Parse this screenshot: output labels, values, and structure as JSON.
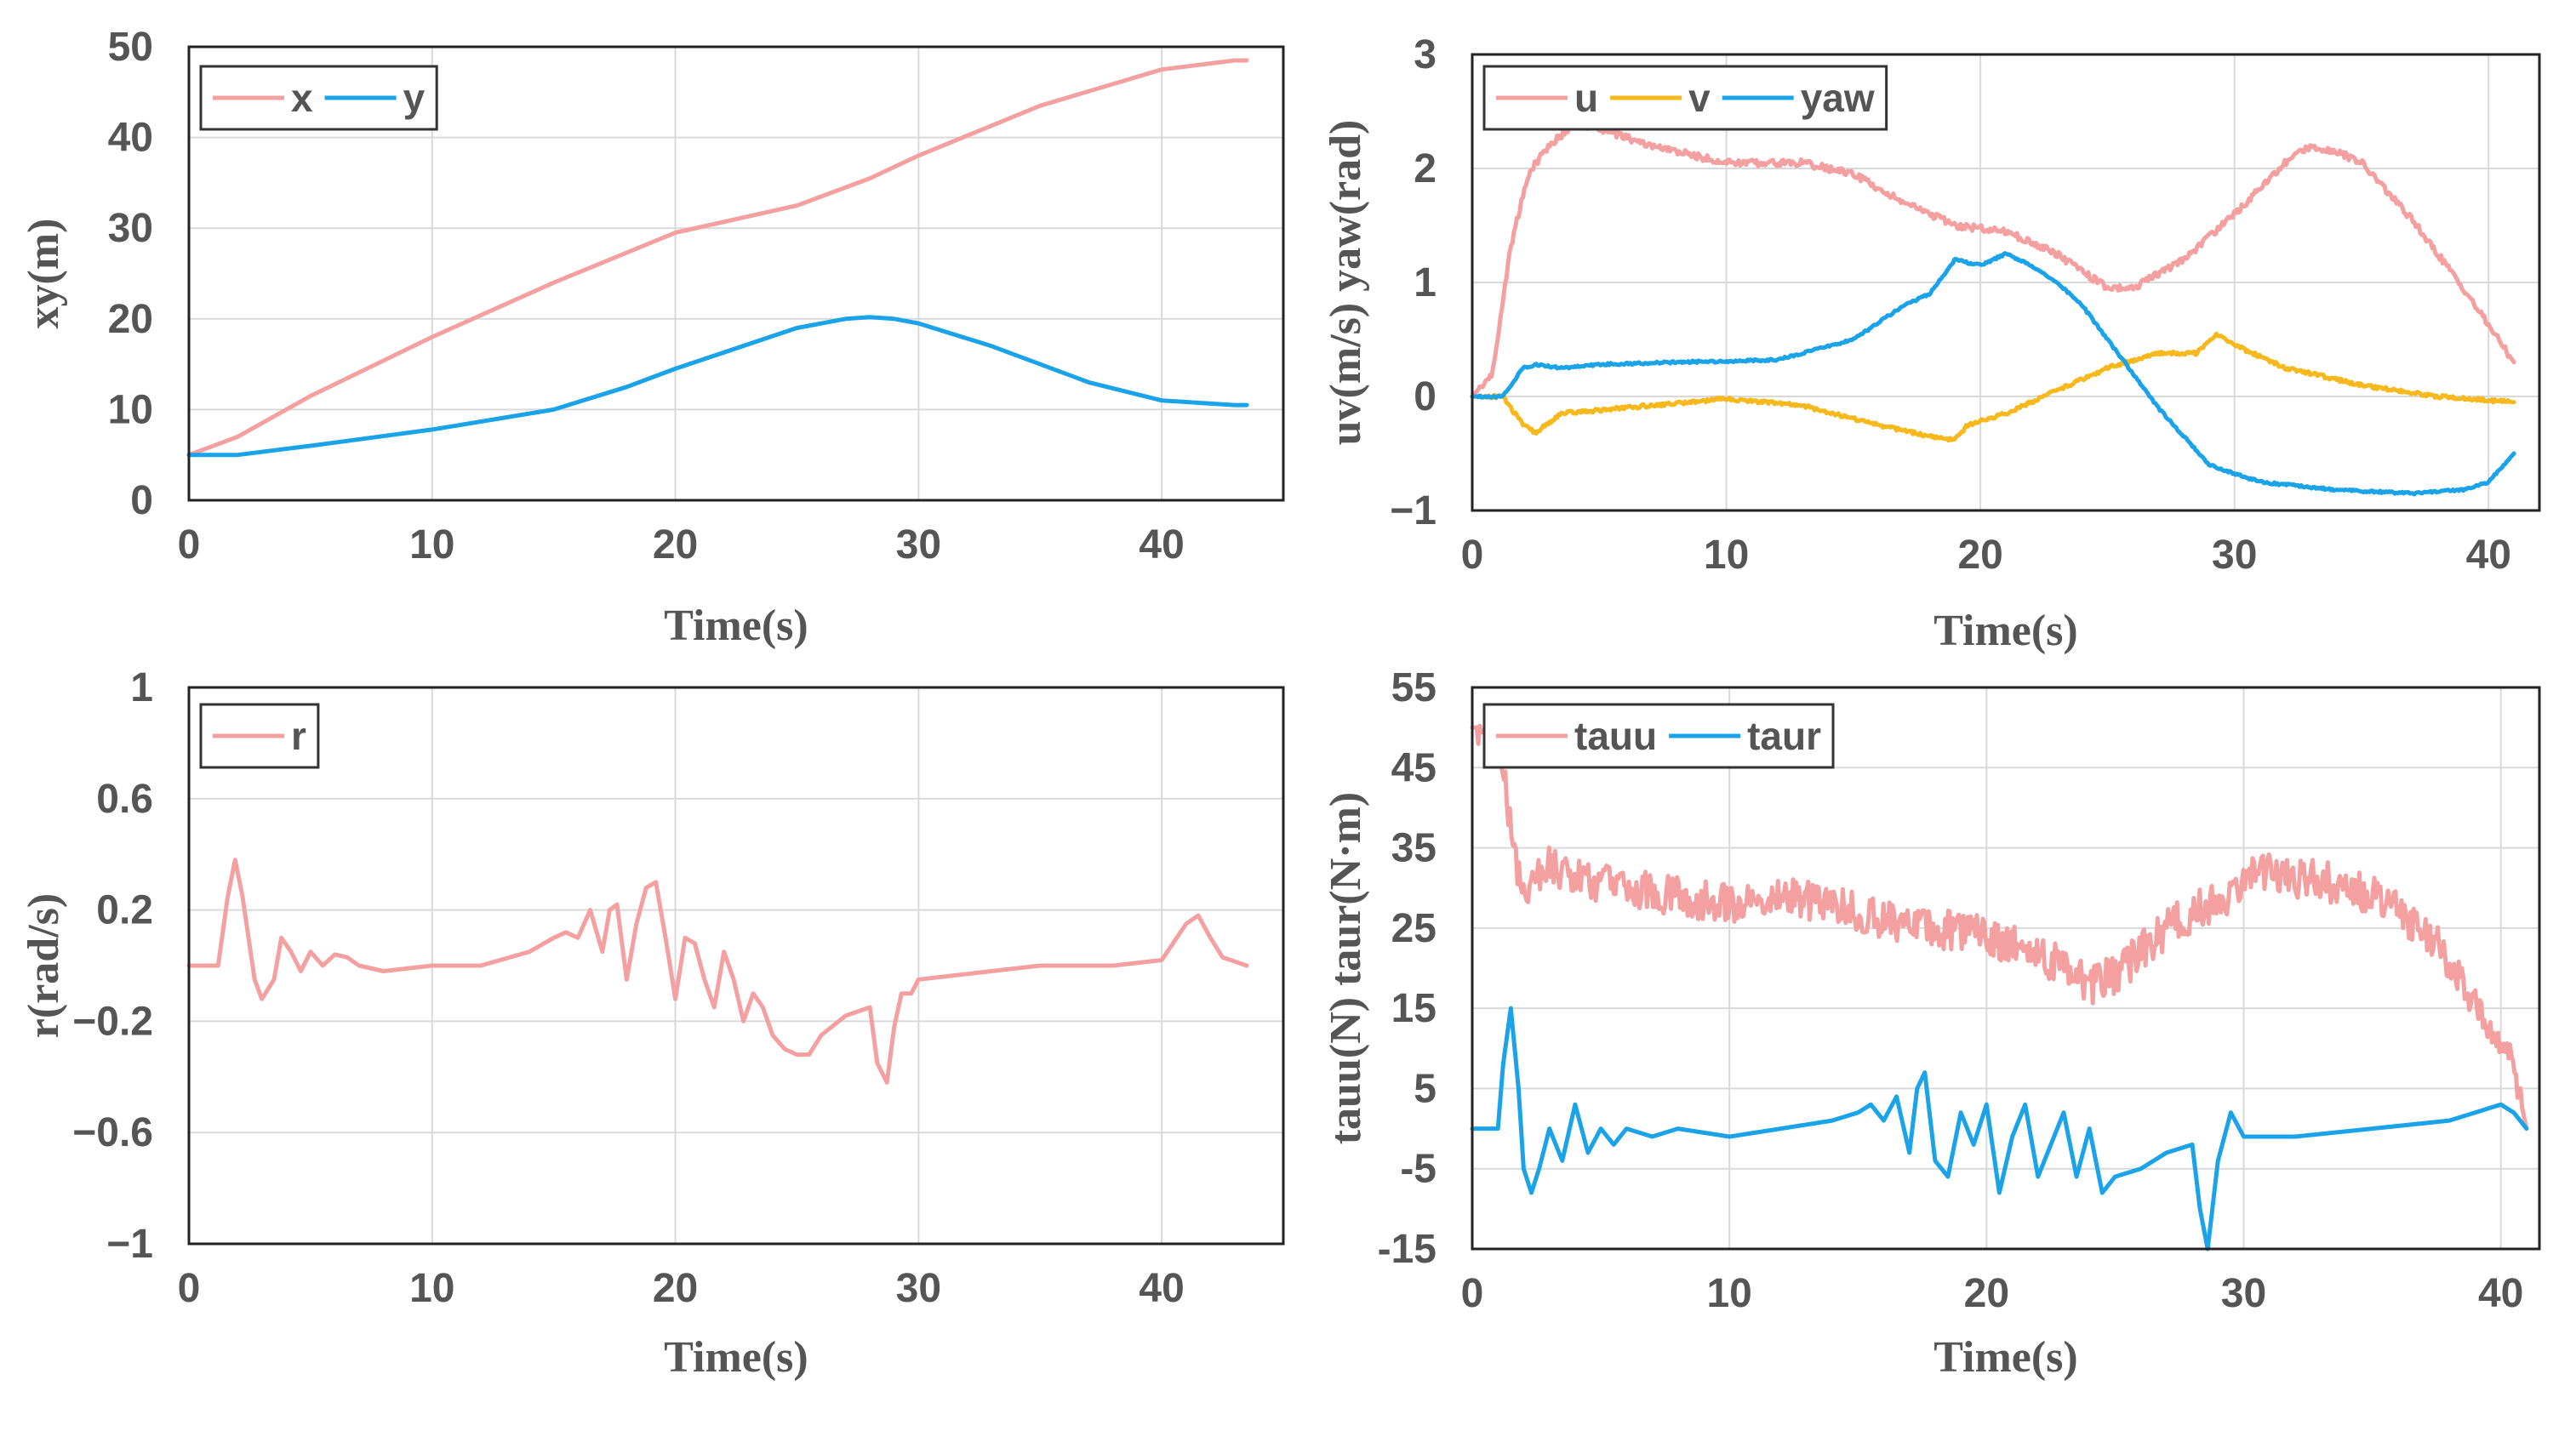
{
  "colors": {
    "pink": "#f4a0a0",
    "blue": "#1aa3e8",
    "orange": "#f7b81c"
  },
  "chart_data": [
    {
      "id": "xy",
      "type": "line",
      "xlabel": "Time(s)",
      "ylabel": "xy(m)",
      "xlim": [
        0,
        45
      ],
      "ylim": [
        0,
        50
      ],
      "xticks": [
        0,
        10,
        20,
        30,
        40
      ],
      "xtick_labels": [
        "0",
        "10",
        "20",
        "30",
        "40"
      ],
      "yticks": [
        0,
        10,
        20,
        30,
        40,
        50
      ],
      "ytick_labels": [
        "0",
        "10",
        "20",
        "30",
        "40",
        "50"
      ],
      "legend_position": "top-left",
      "series": [
        {
          "name": "x",
          "color": "#f4a0a0",
          "x": [
            0,
            2,
            5,
            10,
            15,
            20,
            25,
            28,
            30,
            35,
            40,
            43,
            43.5
          ],
          "y": [
            5,
            7,
            11.5,
            18,
            24,
            29.5,
            32.5,
            35.5,
            38,
            43.5,
            47.5,
            48.5,
            48.5
          ]
        },
        {
          "name": "y",
          "color": "#1aa3e8",
          "x": [
            0,
            2,
            5,
            10,
            15,
            18,
            20,
            25,
            27,
            28,
            29,
            30,
            33,
            37,
            40,
            43,
            43.5
          ],
          "y": [
            5,
            5,
            6,
            7.8,
            10,
            12.5,
            14.5,
            19,
            20,
            20.2,
            20,
            19.5,
            17,
            13,
            11,
            10.5,
            10.5
          ]
        }
      ]
    },
    {
      "id": "uv",
      "type": "line",
      "xlabel": "Time(s)",
      "ylabel": "uv(m/s) yaw(rad)",
      "xlim": [
        0,
        42
      ],
      "ylim": [
        -1,
        3
      ],
      "xticks": [
        0,
        10,
        20,
        30,
        40
      ],
      "xtick_labels": [
        "0",
        "10",
        "20",
        "30",
        "40"
      ],
      "yticks": [
        -1,
        0,
        1,
        2,
        3
      ],
      "ytick_labels": [
        "−1",
        "0",
        "1",
        "2",
        "3"
      ],
      "legend_position": "top-left",
      "series": [
        {
          "name": "u",
          "color": "#f4a0a0",
          "noise": 0.03,
          "x": [
            0,
            0.8,
            1.5,
            2.2,
            3,
            4,
            5,
            7,
            10,
            13,
            15,
            17,
            19,
            21,
            23,
            25,
            26,
            28,
            30,
            32,
            33,
            34,
            35,
            37,
            39,
            41
          ],
          "y": [
            0,
            0.2,
            1.3,
            1.95,
            2.2,
            2.38,
            2.35,
            2.2,
            2.05,
            2.05,
            1.95,
            1.7,
            1.5,
            1.45,
            1.25,
            0.95,
            0.95,
            1.2,
            1.6,
            2.05,
            2.2,
            2.15,
            2.05,
            1.55,
            0.95,
            0.3
          ]
        },
        {
          "name": "v",
          "color": "#f7b81c",
          "noise": 0.015,
          "x": [
            0,
            1.2,
            2,
            2.5,
            3.5,
            5,
            7,
            10,
            13,
            16,
            18,
            19,
            19.5,
            21,
            23,
            25,
            27,
            28.5,
            29.3,
            30,
            32,
            35,
            38,
            41
          ],
          "y": [
            0,
            0,
            -0.25,
            -0.32,
            -0.15,
            -0.12,
            -0.08,
            -0.02,
            -0.08,
            -0.25,
            -0.35,
            -0.38,
            -0.25,
            -0.15,
            0.05,
            0.25,
            0.38,
            0.38,
            0.55,
            0.45,
            0.25,
            0.1,
            0,
            -0.05
          ]
        },
        {
          "name": "yaw",
          "color": "#1aa3e8",
          "noise": 0.01,
          "x": [
            0,
            1.2,
            2,
            2.5,
            3.5,
            5,
            8,
            12,
            15,
            17,
            18,
            19,
            20,
            21,
            22,
            23,
            24,
            25,
            26,
            27,
            28,
            29,
            31,
            34,
            37,
            39,
            40,
            41
          ],
          "y": [
            0,
            0,
            0.25,
            0.28,
            0.25,
            0.28,
            0.3,
            0.32,
            0.5,
            0.8,
            0.9,
            1.2,
            1.15,
            1.25,
            1.15,
            1.0,
            0.8,
            0.5,
            0.2,
            -0.1,
            -0.35,
            -0.6,
            -0.75,
            -0.82,
            -0.85,
            -0.82,
            -0.75,
            -0.5
          ]
        }
      ]
    },
    {
      "id": "r",
      "type": "line",
      "xlabel": "Time(s)",
      "ylabel": "r(rad/s)",
      "xlim": [
        0,
        45
      ],
      "ylim": [
        -1,
        1
      ],
      "xticks": [
        0,
        10,
        20,
        30,
        40
      ],
      "xtick_labels": [
        "0",
        "10",
        "20",
        "30",
        "40"
      ],
      "yticks": [
        -1,
        -0.6,
        -0.2,
        0.2,
        0.6,
        1
      ],
      "ytick_labels": [
        "−1",
        "−0.6",
        "−0.2",
        "0.2",
        "0.6",
        "1"
      ],
      "legend_position": "top-left",
      "series": [
        {
          "name": "r",
          "color": "#f4a0a0",
          "x": [
            0,
            1.2,
            1.6,
            1.9,
            2.2,
            2.7,
            3,
            3.5,
            3.8,
            4.2,
            4.6,
            5,
            5.5,
            6,
            6.5,
            7,
            8,
            10,
            12,
            14,
            15,
            15.5,
            16,
            16.5,
            17,
            17.3,
            17.6,
            18,
            18.4,
            18.8,
            19.2,
            19.6,
            20,
            20.4,
            20.8,
            21.2,
            21.6,
            22,
            22.4,
            22.8,
            23.2,
            23.6,
            24,
            24.5,
            25,
            25.5,
            26,
            27,
            28,
            28.3,
            28.7,
            29,
            29.3,
            29.7,
            30,
            32,
            35,
            38,
            40,
            41,
            41.5,
            42,
            42.5,
            43.5
          ],
          "y": [
            0,
            0,
            0.25,
            0.38,
            0.25,
            -0.05,
            -0.12,
            -0.05,
            0.1,
            0.05,
            -0.02,
            0.05,
            0,
            0.04,
            0.03,
            0,
            -0.02,
            0,
            0,
            0.05,
            0.1,
            0.12,
            0.1,
            0.2,
            0.05,
            0.2,
            0.22,
            -0.05,
            0.15,
            0.28,
            0.3,
            0.1,
            -0.12,
            0.1,
            0.08,
            -0.05,
            -0.15,
            0.05,
            -0.05,
            -0.2,
            -0.1,
            -0.15,
            -0.25,
            -0.3,
            -0.32,
            -0.32,
            -0.25,
            -0.18,
            -0.15,
            -0.35,
            -0.42,
            -0.22,
            -0.1,
            -0.1,
            -0.05,
            -0.03,
            0,
            0,
            0.02,
            0.15,
            0.18,
            0.1,
            0.03,
            0
          ]
        }
      ]
    },
    {
      "id": "tau",
      "type": "line",
      "xlabel": "Time(s)",
      "ylabel": "tauu(N) taur(N·m)",
      "xlim": [
        0,
        41.5
      ],
      "ylim": [
        -15,
        55
      ],
      "xticks": [
        0,
        10,
        20,
        30,
        40
      ],
      "xtick_labels": [
        "0",
        "10",
        "20",
        "30",
        "40"
      ],
      "yticks": [
        -15,
        -5,
        5,
        15,
        25,
        35,
        45,
        55
      ],
      "ytick_labels": [
        "-15",
        "-5",
        "5",
        "15",
        "25",
        "35",
        "45",
        "55"
      ],
      "legend_position": "top-left",
      "series": [
        {
          "name": "tauu",
          "color": "#f4a0a0",
          "noise": 2.5,
          "x": [
            0,
            0.8,
            1.2,
            1.6,
            2,
            2.5,
            3,
            4,
            6,
            8,
            10,
            12,
            14,
            16,
            18,
            20,
            22,
            23,
            24,
            25,
            26,
            27,
            28,
            29,
            30,
            31,
            32,
            33,
            34,
            35,
            36,
            37,
            38,
            39,
            40,
            40.5,
            40.8,
            41
          ],
          "y": [
            50,
            50,
            45,
            35,
            28,
            32,
            33,
            31,
            30,
            29,
            28,
            29,
            28,
            26,
            25,
            24,
            22,
            20,
            18,
            19,
            22,
            25,
            27,
            28,
            31,
            32,
            31,
            31,
            30,
            29,
            27,
            25,
            21,
            16,
            11,
            7,
            3,
            0
          ]
        },
        {
          "name": "taur",
          "color": "#1aa3e8",
          "x": [
            0,
            1,
            1.2,
            1.5,
            1.8,
            2,
            2.3,
            2.6,
            3,
            3.5,
            4,
            4.5,
            5,
            5.5,
            6,
            7,
            8,
            10,
            12,
            14,
            15,
            15.5,
            16,
            16.5,
            17,
            17.3,
            17.6,
            18,
            18.5,
            19,
            19.5,
            20,
            20.5,
            21,
            21.5,
            22,
            22.5,
            23,
            23.5,
            24,
            24.5,
            25,
            26,
            27,
            28,
            28.3,
            28.6,
            29,
            29.5,
            30,
            32,
            35,
            38,
            40,
            40.5,
            41
          ],
          "y": [
            0,
            0,
            8,
            15,
            5,
            -5,
            -8,
            -5,
            0,
            -4,
            3,
            -3,
            0,
            -2,
            0,
            -1,
            0,
            -1,
            0,
            1,
            2,
            3,
            1,
            4,
            -3,
            5,
            7,
            -4,
            -6,
            2,
            -2,
            3,
            -8,
            -1,
            3,
            -6,
            -2,
            2,
            -6,
            0,
            -8,
            -6,
            -5,
            -3,
            -2,
            -10,
            -15,
            -4,
            2,
            -1,
            -1,
            0,
            1,
            3,
            2,
            0
          ]
        }
      ]
    }
  ]
}
